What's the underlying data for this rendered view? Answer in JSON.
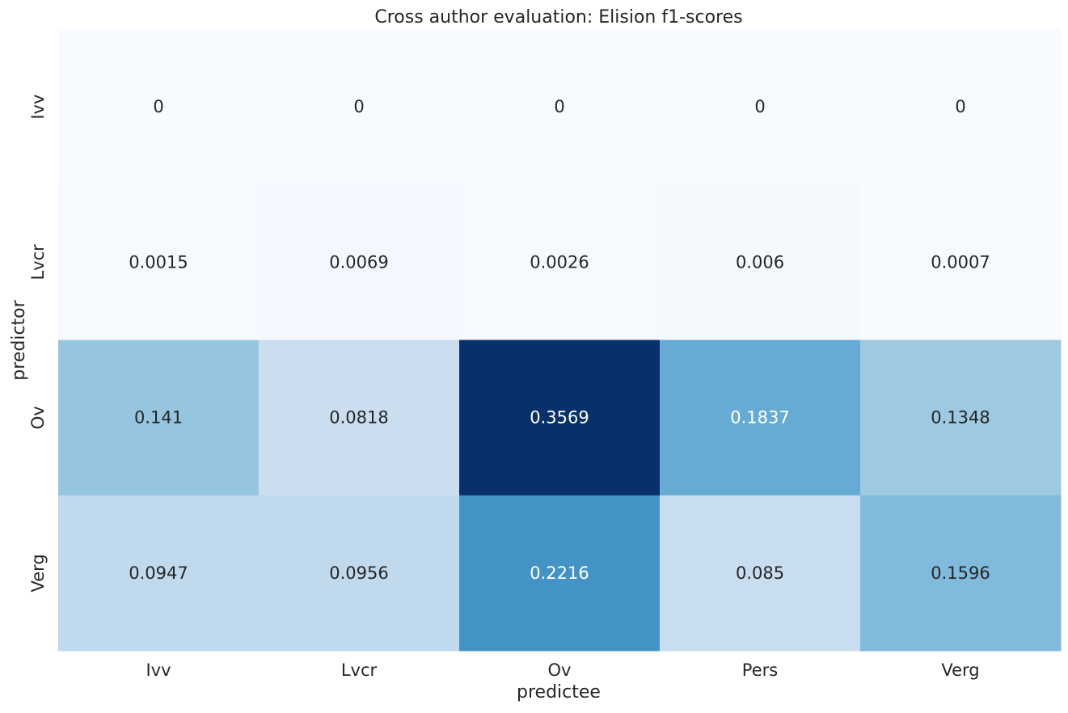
{
  "chart_data": {
    "type": "heatmap",
    "title": "Cross author evaluation: Elision f1-scores",
    "xlabel": "predictee",
    "ylabel": "predictor",
    "x_categories": [
      "Ivv",
      "Lvcr",
      "Ov",
      "Pers",
      "Verg"
    ],
    "y_categories": [
      "Ivv",
      "Lvcr",
      "Ov",
      "Verg"
    ],
    "values": [
      [
        0,
        0,
        0,
        0,
        0
      ],
      [
        0.0015,
        0.0069,
        0.0026,
        0.006,
        0.0007
      ],
      [
        0.141,
        0.0818,
        0.3569,
        0.1837,
        0.1348
      ],
      [
        0.0947,
        0.0956,
        0.2216,
        0.085,
        0.1596
      ]
    ],
    "colormap": "Blues",
    "vmin": 0,
    "vmax": 0.3569,
    "annotate": true,
    "colorbar": false,
    "grid": false,
    "colors": {
      "text_dark": "#262626",
      "text_light": "#ffffff"
    }
  }
}
